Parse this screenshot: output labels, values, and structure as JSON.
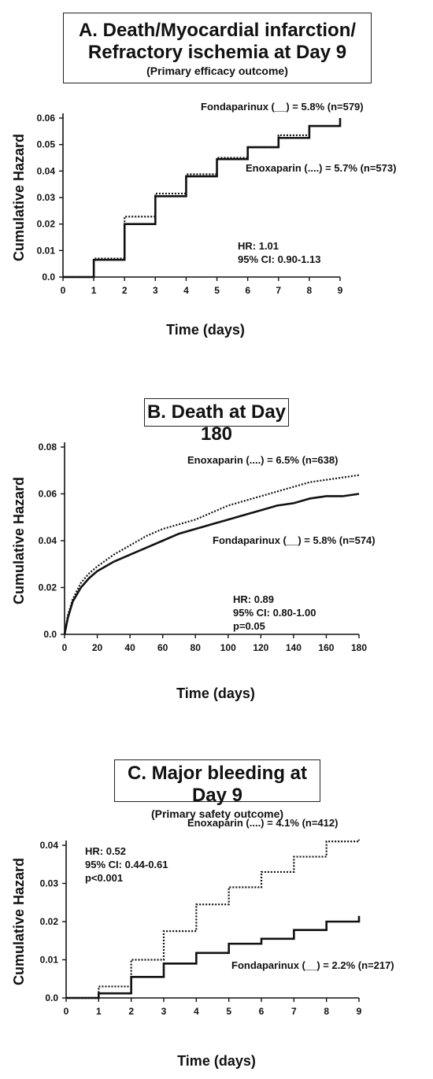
{
  "panels": [
    {
      "title": "A. Death/Myocardial infarction/",
      "title_line2": "Refractory ischemia at Day 9",
      "subtitle": "(Primary efficacy outcome)",
      "stats": [
        "HR: 1.01",
        "95% CI: 0.90-1.13"
      ],
      "legend": {
        "fondaparinux": "Fondaparinux (__) = 5.8% (n=579)",
        "enoxaparin": "Enoxaparin (....) = 5.7% (n=573)"
      }
    },
    {
      "title": "B. Death at Day 180",
      "stats": [
        "HR: 0.89",
        "95% CI: 0.80-1.00",
        "p=0.05"
      ],
      "legend": {
        "enoxaparin": "Enoxaparin (....) = 6.5% (n=638)",
        "fondaparinux": "Fondaparinux (__) = 5.8% (n=574)"
      }
    },
    {
      "title": "C. Major bleeding at Day 9",
      "subtitle": "(Primary safety outcome)",
      "stats": [
        "HR: 0.52",
        "95% CI: 0.44-0.61",
        "p<0.001"
      ],
      "legend": {
        "enoxaparin": "Enoxaparin (....) = 4.1% (n=412)",
        "fondaparinux": "Fondaparinux (__) = 2.2% (n=217)"
      }
    }
  ],
  "chart_data": [
    {
      "type": "line",
      "step": true,
      "title": "A. Death/Myocardial infarction/ Refractory ischemia at Day 9",
      "subtitle": "(Primary efficacy outcome)",
      "xlabel": "Time (days)",
      "ylabel": "Cumulative Hazard",
      "xlim": [
        0,
        9
      ],
      "ylim": [
        0,
        0.06
      ],
      "xticks": [
        "0",
        "1",
        "2",
        "3",
        "4",
        "5",
        "6",
        "7",
        "8",
        "9"
      ],
      "yticks": [
        "0.0",
        "0.01",
        "0.02",
        "0.03",
        "0.04",
        "0.05",
        "0.06"
      ],
      "x": [
        0,
        1,
        2,
        3,
        4,
        5,
        6,
        7,
        8,
        9
      ],
      "series": [
        {
          "name": "Fondaparinux",
          "style": "solid",
          "values": [
            0,
            0.0065,
            0.02,
            0.0305,
            0.038,
            0.0445,
            0.049,
            0.0525,
            0.057,
            0.06
          ]
        },
        {
          "name": "Enoxaparin",
          "style": "dotted",
          "values": [
            0,
            0.007,
            0.0228,
            0.0315,
            0.0388,
            0.045,
            0.049,
            0.0535,
            0.057,
            0.0575
          ]
        }
      ],
      "grid": false
    },
    {
      "type": "line",
      "step": false,
      "title": "B. Death at Day 180",
      "xlabel": "Time (days)",
      "ylabel": "Cumulative Hazard",
      "xlim": [
        0,
        180
      ],
      "ylim": [
        0,
        0.08
      ],
      "xticks": [
        "0",
        "20",
        "40",
        "60",
        "80",
        "100",
        "120",
        "140",
        "160",
        "180"
      ],
      "yticks": [
        "0.0",
        "0.02",
        "0.04",
        "0.06",
        "0.08"
      ],
      "x": [
        0,
        2,
        5,
        10,
        15,
        20,
        30,
        40,
        50,
        60,
        70,
        80,
        90,
        100,
        110,
        120,
        130,
        140,
        150,
        160,
        170,
        180
      ],
      "series": [
        {
          "name": "Enoxaparin",
          "style": "dotted",
          "values": [
            0,
            0.008,
            0.015,
            0.022,
            0.026,
            0.029,
            0.034,
            0.038,
            0.042,
            0.045,
            0.047,
            0.049,
            0.052,
            0.055,
            0.057,
            0.059,
            0.061,
            0.063,
            0.065,
            0.066,
            0.067,
            0.068
          ]
        },
        {
          "name": "Fondaparinux",
          "style": "solid",
          "values": [
            0,
            0.007,
            0.014,
            0.02,
            0.024,
            0.027,
            0.031,
            0.034,
            0.037,
            0.04,
            0.043,
            0.045,
            0.047,
            0.049,
            0.051,
            0.053,
            0.055,
            0.056,
            0.058,
            0.059,
            0.059,
            0.06
          ]
        }
      ],
      "grid": false
    },
    {
      "type": "line",
      "step": true,
      "title": "C. Major bleeding at Day 9",
      "subtitle": "(Primary safety outcome)",
      "xlabel": "Time (days)",
      "ylabel": "Cumulative Hazard",
      "xlim": [
        0,
        9
      ],
      "ylim": [
        0,
        0.04
      ],
      "xticks": [
        "0",
        "1",
        "2",
        "3",
        "4",
        "5",
        "6",
        "7",
        "8",
        "9"
      ],
      "yticks": [
        "0.0",
        "0.01",
        "0.02",
        "0.03",
        "0.04"
      ],
      "x": [
        0,
        1,
        2,
        3,
        4,
        5,
        6,
        7,
        8,
        9
      ],
      "series": [
        {
          "name": "Enoxaparin",
          "style": "dotted",
          "values": [
            0,
            0.003,
            0.01,
            0.0175,
            0.0245,
            0.029,
            0.033,
            0.037,
            0.041,
            0.0415
          ]
        },
        {
          "name": "Fondaparinux",
          "style": "solid",
          "values": [
            0,
            0.0012,
            0.0055,
            0.009,
            0.0118,
            0.0142,
            0.0155,
            0.0178,
            0.02,
            0.0215
          ]
        }
      ],
      "grid": false
    }
  ]
}
